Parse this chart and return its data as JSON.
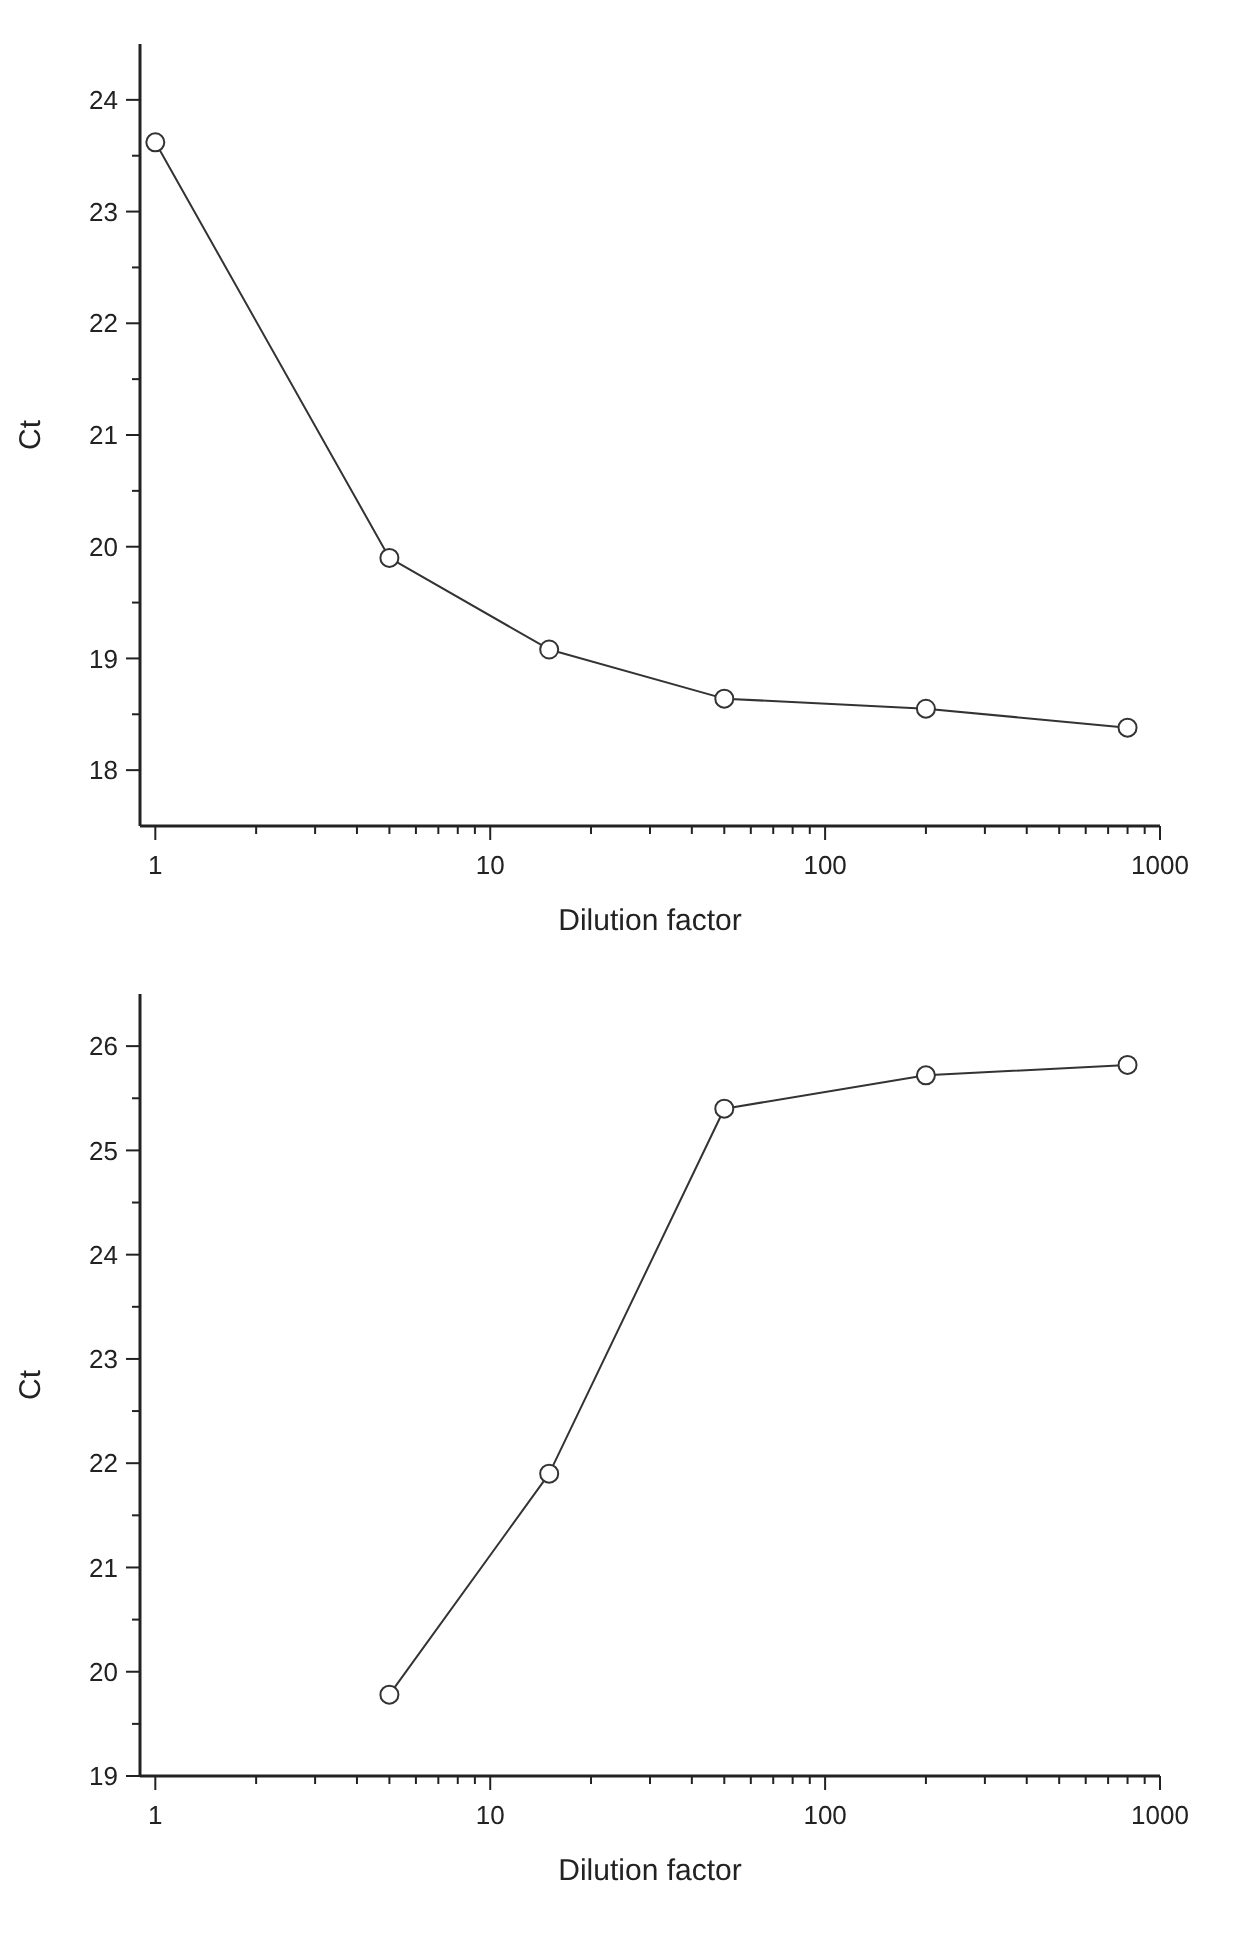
{
  "chart_data": [
    {
      "type": "line",
      "xlabel": "Dilution factor",
      "ylabel": "Ct",
      "log": "x",
      "marker": "circle",
      "line_style": "solid",
      "grid": false,
      "x": [
        1,
        5,
        15,
        50,
        200,
        800
      ],
      "series": [
        {
          "color": "#333333",
          "values": [
            23.62,
            19.9,
            19.08,
            18.64,
            18.55,
            18.38
          ]
        }
      ],
      "xlim": [
        0.9,
        1000
      ],
      "xticks": [
        1,
        {
          "value": 2,
          "label": null
        },
        {
          "value": 3,
          "label": null
        },
        {
          "value": 4,
          "label": null
        },
        {
          "value": 5,
          "label": null
        },
        {
          "value": 6,
          "label": null
        },
        {
          "value": 7,
          "label": null
        },
        {
          "value": 8,
          "label": null
        },
        {
          "value": 9,
          "label": null
        },
        10,
        {
          "value": 20,
          "label": null
        },
        {
          "value": 30,
          "label": null
        },
        {
          "value": 40,
          "label": null
        },
        {
          "value": 50,
          "label": null
        },
        {
          "value": 60,
          "label": null
        },
        {
          "value": 70,
          "label": null
        },
        {
          "value": 80,
          "label": null
        },
        {
          "value": 90,
          "label": null
        },
        100,
        {
          "value": 200,
          "label": null
        },
        {
          "value": 300,
          "label": null
        },
        {
          "value": 400,
          "label": null
        },
        {
          "value": 500,
          "label": null
        },
        {
          "value": 600,
          "label": null
        },
        {
          "value": 700,
          "label": null
        },
        {
          "value": 800,
          "label": null
        },
        {
          "value": 900,
          "label": null
        },
        1000
      ],
      "ylim": [
        17.5,
        24.5
      ],
      "yticks": [
        18,
        {
          "value": 18.5,
          "label": null
        },
        19,
        {
          "value": 19.5,
          "label": null
        },
        20,
        {
          "value": 20.5,
          "label": null
        },
        21,
        {
          "value": 21.5,
          "label": null
        },
        22,
        {
          "value": 22.5,
          "label": null
        },
        23,
        {
          "value": 23.5,
          "label": null
        },
        24
      ]
    },
    {
      "type": "line",
      "xlabel": "Dilution factor",
      "ylabel": "Ct",
      "log": "x",
      "marker": "circle",
      "line_style": "solid",
      "grid": false,
      "x": [
        5,
        15,
        50,
        200,
        800
      ],
      "series": [
        {
          "color": "#333333",
          "values": [
            19.78,
            21.9,
            25.4,
            25.72,
            25.82
          ]
        }
      ],
      "xlim": [
        0.9,
        1000
      ],
      "xticks": [
        1,
        {
          "value": 2,
          "label": null
        },
        {
          "value": 3,
          "label": null
        },
        {
          "value": 4,
          "label": null
        },
        {
          "value": 5,
          "label": null
        },
        {
          "value": 6,
          "label": null
        },
        {
          "value": 7,
          "label": null
        },
        {
          "value": 8,
          "label": null
        },
        {
          "value": 9,
          "label": null
        },
        10,
        {
          "value": 20,
          "label": null
        },
        {
          "value": 30,
          "label": null
        },
        {
          "value": 40,
          "label": null
        },
        {
          "value": 50,
          "label": null
        },
        {
          "value": 60,
          "label": null
        },
        {
          "value": 70,
          "label": null
        },
        {
          "value": 80,
          "label": null
        },
        {
          "value": 90,
          "label": null
        },
        100,
        {
          "value": 200,
          "label": null
        },
        {
          "value": 300,
          "label": null
        },
        {
          "value": 400,
          "label": null
        },
        {
          "value": 500,
          "label": null
        },
        {
          "value": 600,
          "label": null
        },
        {
          "value": 700,
          "label": null
        },
        {
          "value": 800,
          "label": null
        },
        {
          "value": 900,
          "label": null
        },
        1000
      ],
      "ylim": [
        19,
        26.5
      ],
      "yticks": [
        19,
        {
          "value": 19.5,
          "label": null
        },
        20,
        {
          "value": 20.5,
          "label": null
        },
        21,
        {
          "value": 21.5,
          "label": null
        },
        22,
        {
          "value": 22.5,
          "label": null
        },
        23,
        {
          "value": 23.5,
          "label": null
        },
        24,
        {
          "value": 24.5,
          "label": null
        },
        25,
        {
          "value": 25.5,
          "label": null
        },
        26
      ]
    }
  ]
}
